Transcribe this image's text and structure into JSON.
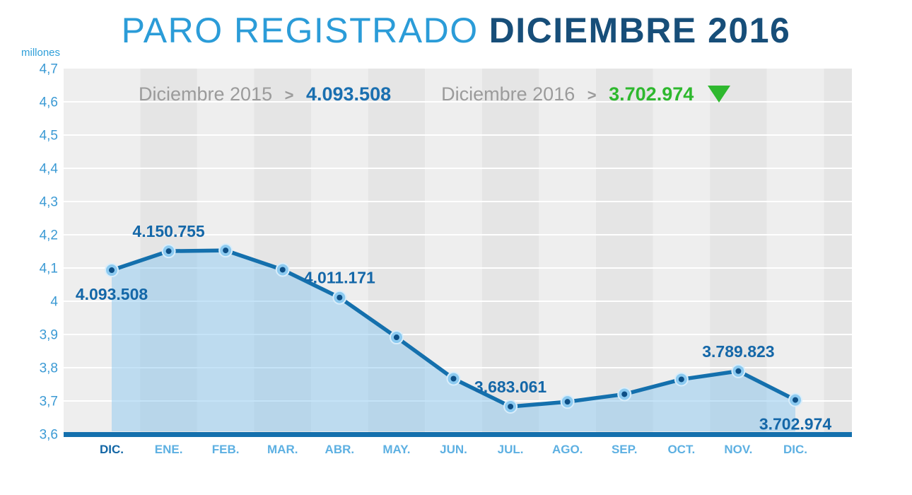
{
  "header": {
    "title_light": "PARO REGISTRADO",
    "title_bold": "DICIEMBRE 2016"
  },
  "y_axis": {
    "unit": "millones",
    "ticks": [
      "4,7",
      "4,6",
      "4,5",
      "4,4",
      "4,3",
      "4,2",
      "4,1",
      "4",
      "3,9",
      "3,8",
      "3,7",
      "3,6"
    ]
  },
  "legend": {
    "items": [
      {
        "label": "Diciembre 2015",
        "separator": ">",
        "value": "4.093.508"
      },
      {
        "label": "Diciembre 2016",
        "separator": ">",
        "value": "3.702.974",
        "trend_icon": "down-triangle"
      }
    ]
  },
  "chart_data": {
    "type": "area",
    "title": "PARO REGISTRADO DICIEMBRE 2016",
    "ylabel": "millones",
    "ylim": [
      3.6,
      4.7
    ],
    "y_tick_step": 0.1,
    "grid": true,
    "categories": [
      "DIC.",
      "ENE.",
      "FEB.",
      "MAR.",
      "ABR.",
      "MAY.",
      "JUN.",
      "JUL.",
      "AGO.",
      "SEP.",
      "OCT.",
      "NOV.",
      "DIC."
    ],
    "values": [
      4093508,
      4150755,
      4152986,
      4094770,
      4011171,
      3891403,
      3767054,
      3683061,
      3697496,
      3720297,
      3764982,
      3789823,
      3702974
    ],
    "unit_divisor": 1000000,
    "point_labels": [
      {
        "index": 0,
        "text": "4.093.508",
        "placement": "below"
      },
      {
        "index": 1,
        "text": "4.150.755",
        "placement": "above"
      },
      {
        "index": 4,
        "text": "4.011.171",
        "placement": "above"
      },
      {
        "index": 7,
        "text": "3.683.061",
        "placement": "above"
      },
      {
        "index": 11,
        "text": "3.789.823",
        "placement": "above"
      },
      {
        "index": 12,
        "text": "3.702.974",
        "placement": "below"
      }
    ]
  },
  "colors": {
    "title_light": "#2b9cd8",
    "title_dark": "#174e79",
    "axis_tick_label": "#3b9ad4",
    "x_label": "#5db0e2",
    "x_label_first": "#1266a5",
    "line": "#1470ad",
    "area": "rgba(140,199,240,0.5)",
    "marker_outer": "#8ccaf0",
    "marker_outer_ring": "#d9edfa",
    "marker_inner": "#0d4f86",
    "grid": "#ffffff",
    "plot_bg_even": "#eeeeee",
    "plot_bg_odd": "#e5e5e5",
    "point_label": "#1467a8",
    "legend_text": "#9b9b9b",
    "legend_value_prev": "#1a6fb0",
    "trend_down": "#2eb82e"
  }
}
